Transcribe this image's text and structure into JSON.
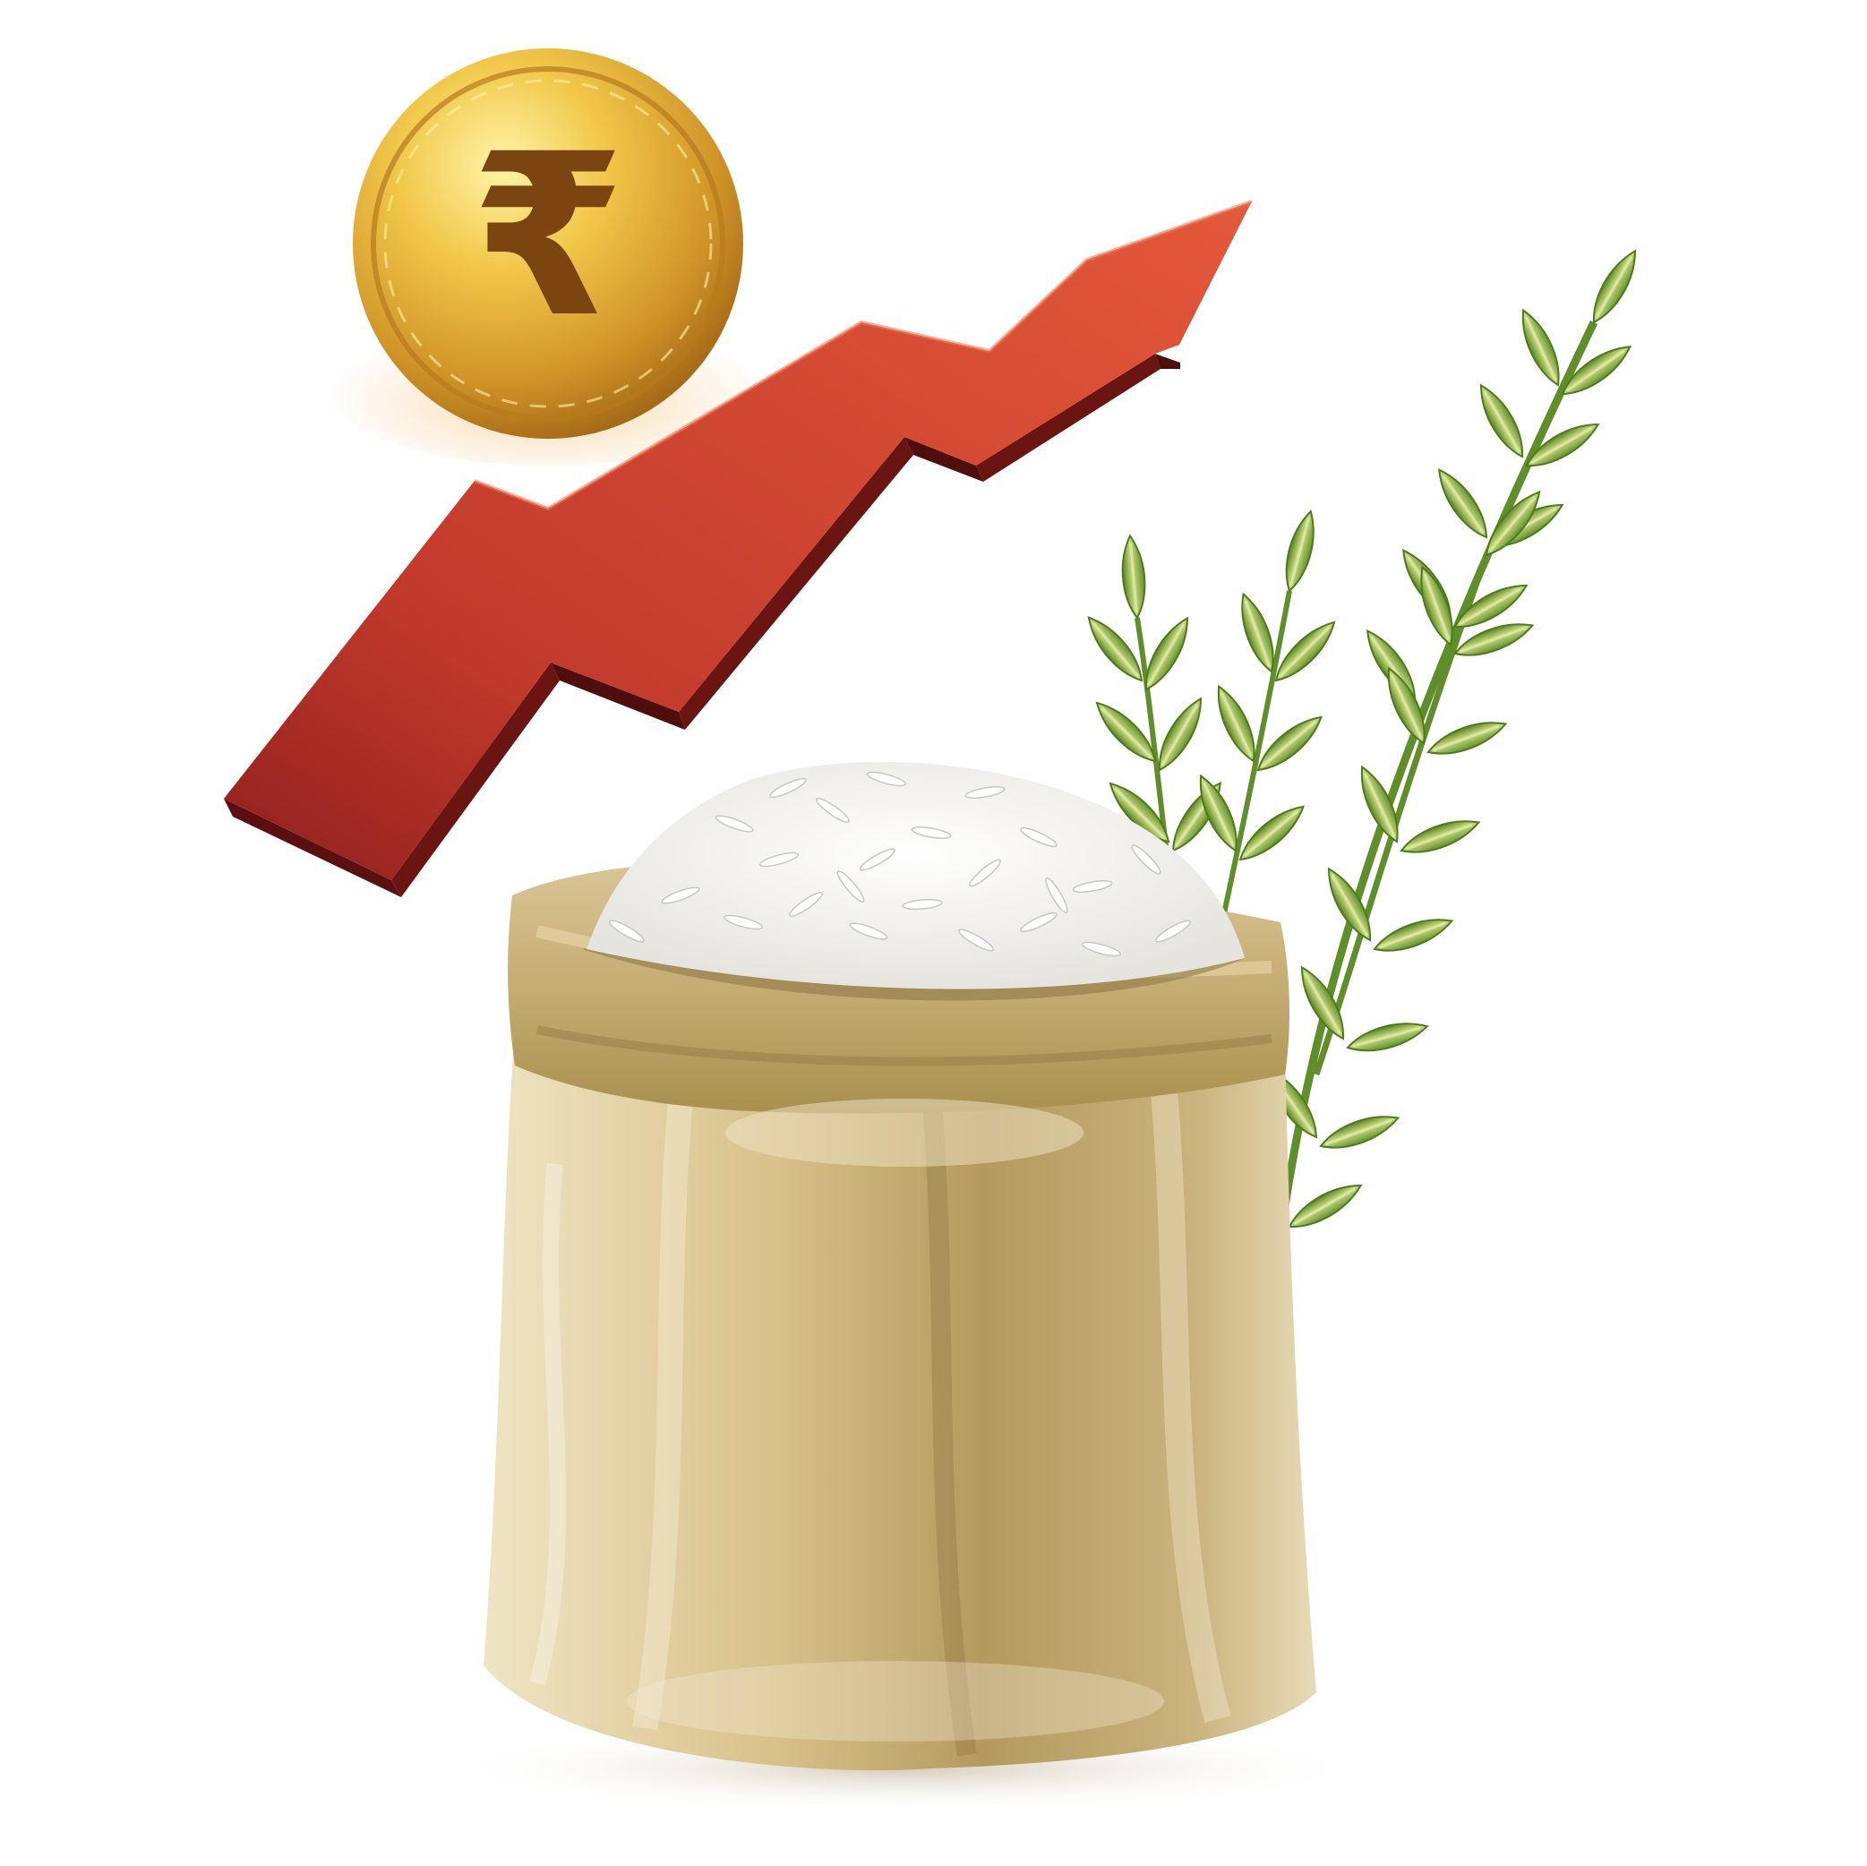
{
  "illustration": {
    "background_color": "#ffffff",
    "coin": {
      "symbol": "₹",
      "gold_light": "#f6d86a",
      "gold_mid": "#d8a42e",
      "gold_dark": "#a86e15",
      "symbol_color": "#7a4510"
    },
    "trend_arrow": {
      "icon": "arrow-up-trend-icon",
      "front_light": "#e35a3a",
      "front_dark": "#9c2420",
      "side_color": "#5a1010"
    },
    "rice_sack": {
      "cloth_light": "#efe4c2",
      "cloth_dark": "#9c844c",
      "rice_color": "#f7f7f5"
    },
    "rice_plant": {
      "stem_color": "#5f8e2a",
      "grain_light": "#c7da7a",
      "grain_dark": "#5f8e2a"
    }
  }
}
